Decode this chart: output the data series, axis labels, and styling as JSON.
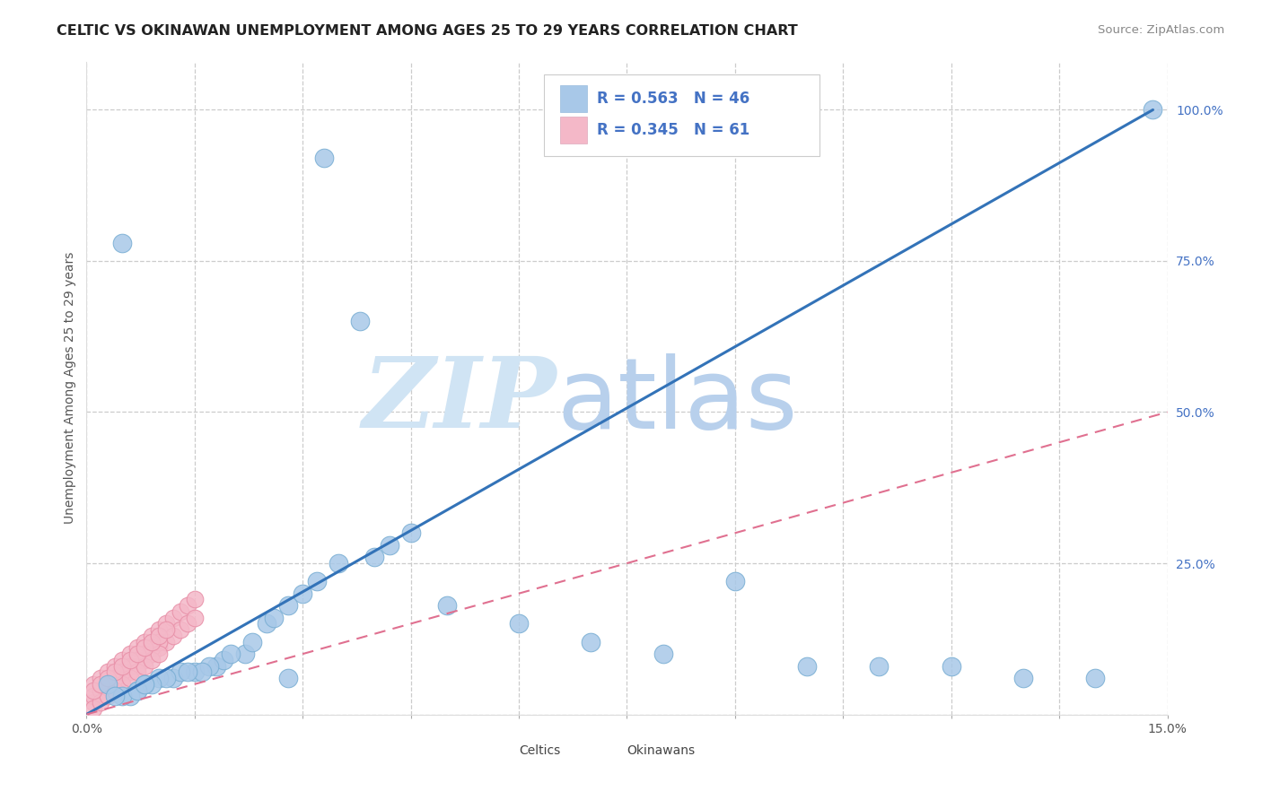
{
  "title": "CELTIC VS OKINAWAN UNEMPLOYMENT AMONG AGES 25 TO 29 YEARS CORRELATION CHART",
  "source": "Source: ZipAtlas.com",
  "ylabel": "Unemployment Among Ages 25 to 29 years",
  "xlim": [
    0.0,
    0.15
  ],
  "ylim": [
    0.0,
    1.08
  ],
  "ytick_positions": [
    0.0,
    0.25,
    0.5,
    0.75,
    1.0
  ],
  "ytick_labels": [
    "",
    "25.0%",
    "50.0%",
    "75.0%",
    "100.0%"
  ],
  "xtick_positions": [
    0.0,
    0.015,
    0.03,
    0.045,
    0.06,
    0.075,
    0.09,
    0.105,
    0.12,
    0.135,
    0.15
  ],
  "xtick_labels": [
    "0.0%",
    "",
    "",
    "",
    "",
    "",
    "",
    "",
    "",
    "",
    "15.0%"
  ],
  "celtic_R": 0.563,
  "celtic_N": 46,
  "okinawan_R": 0.345,
  "okinawan_N": 61,
  "celtic_color": "#a8c8e8",
  "celtic_edge_color": "#7bafd4",
  "celtic_line_color": "#3373b8",
  "okinawan_color": "#f4b8c8",
  "okinawan_edge_color": "#e890a8",
  "okinawan_line_color": "#e07090",
  "ytick_color": "#4472c4",
  "background_color": "#ffffff",
  "grid_color": "#cccccc",
  "watermark_zip": "ZIP",
  "watermark_atlas": "atlas",
  "watermark_color": "#ccddf0",
  "legend_label_1": "Celtics",
  "legend_label_2": "Okinawans",
  "celtic_scatter_x": [
    0.012,
    0.022,
    0.033,
    0.005,
    0.018,
    0.008,
    0.003,
    0.025,
    0.015,
    0.007,
    0.028,
    0.01,
    0.019,
    0.038,
    0.013,
    0.006,
    0.03,
    0.017,
    0.045,
    0.011,
    0.042,
    0.009,
    0.023,
    0.035,
    0.016,
    0.005,
    0.02,
    0.014,
    0.04,
    0.026,
    0.007,
    0.032,
    0.05,
    0.06,
    0.07,
    0.08,
    0.09,
    0.1,
    0.11,
    0.12,
    0.13,
    0.14,
    0.004,
    0.008,
    0.028,
    0.148
  ],
  "celtic_scatter_y": [
    0.06,
    0.1,
    0.92,
    0.78,
    0.08,
    0.05,
    0.05,
    0.15,
    0.07,
    0.04,
    0.18,
    0.06,
    0.09,
    0.65,
    0.07,
    0.03,
    0.2,
    0.08,
    0.3,
    0.06,
    0.28,
    0.05,
    0.12,
    0.25,
    0.07,
    0.03,
    0.1,
    0.07,
    0.26,
    0.16,
    0.04,
    0.22,
    0.18,
    0.15,
    0.12,
    0.1,
    0.22,
    0.08,
    0.08,
    0.08,
    0.06,
    0.06,
    0.03,
    0.05,
    0.06,
    1.0
  ],
  "okinawan_scatter_x": [
    0.001,
    0.001,
    0.002,
    0.002,
    0.003,
    0.003,
    0.004,
    0.004,
    0.005,
    0.005,
    0.006,
    0.006,
    0.007,
    0.007,
    0.008,
    0.008,
    0.009,
    0.009,
    0.01,
    0.01,
    0.011,
    0.011,
    0.012,
    0.012,
    0.013,
    0.013,
    0.014,
    0.014,
    0.015,
    0.015,
    0.001,
    0.002,
    0.003,
    0.004,
    0.005,
    0.006,
    0.007,
    0.008,
    0.009,
    0.01,
    0.001,
    0.002,
    0.003,
    0.004,
    0.005,
    0.006,
    0.007,
    0.008,
    0.009,
    0.01,
    0.001,
    0.002,
    0.003,
    0.004,
    0.005,
    0.006,
    0.007,
    0.008,
    0.009,
    0.01,
    0.011
  ],
  "okinawan_scatter_y": [
    0.02,
    0.05,
    0.03,
    0.06,
    0.04,
    0.07,
    0.05,
    0.08,
    0.06,
    0.09,
    0.07,
    0.1,
    0.08,
    0.11,
    0.09,
    0.12,
    0.1,
    0.13,
    0.11,
    0.14,
    0.12,
    0.15,
    0.13,
    0.16,
    0.14,
    0.17,
    0.15,
    0.18,
    0.16,
    0.19,
    0.03,
    0.04,
    0.05,
    0.06,
    0.07,
    0.08,
    0.09,
    0.1,
    0.11,
    0.12,
    0.01,
    0.02,
    0.03,
    0.04,
    0.05,
    0.06,
    0.07,
    0.08,
    0.09,
    0.1,
    0.04,
    0.05,
    0.06,
    0.07,
    0.08,
    0.09,
    0.1,
    0.11,
    0.12,
    0.13,
    0.14
  ],
  "celtic_line_x": [
    0.0,
    0.148
  ],
  "celtic_line_y": [
    0.0,
    1.0
  ],
  "okinawan_line_x": [
    0.0,
    0.15
  ],
  "okinawan_line_y": [
    0.0,
    0.5
  ]
}
